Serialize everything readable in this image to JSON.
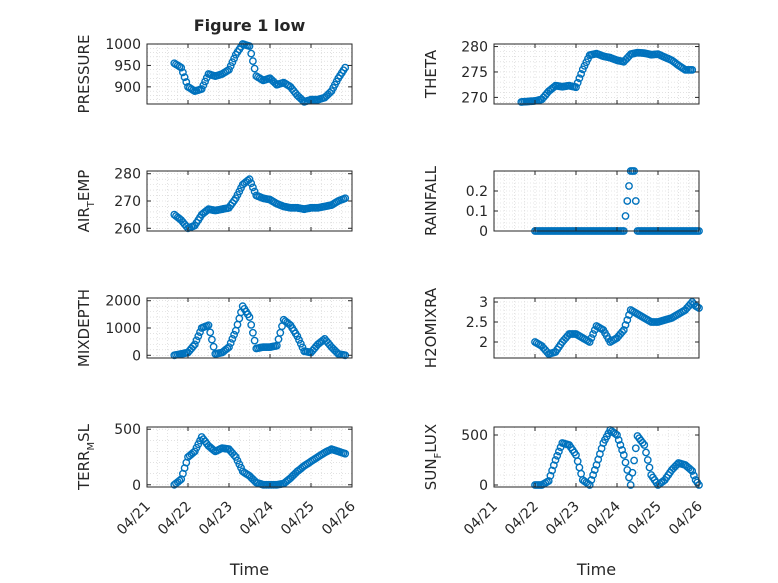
{
  "figure_title": "Figure 1 low",
  "colors": {
    "marker": "#0072BD",
    "axis": "#262626",
    "grid": "#d0d0d0"
  },
  "chart_data": [
    {
      "type": "scatter",
      "ylabel": "PRESSURE",
      "xlim": [
        "04/21",
        "04/26"
      ],
      "ylim": [
        860,
        1000
      ],
      "yticks": [
        900,
        950,
        1000
      ],
      "grid": true,
      "x": [
        "04/21 16:00",
        "04/21 20:00",
        "04/22 00:00",
        "04/22 04:00",
        "04/22 08:00",
        "04/22 12:00",
        "04/22 16:00",
        "04/22 20:00",
        "04/23 00:00",
        "04/23 04:00",
        "04/23 08:00",
        "04/23 12:00",
        "04/23 16:00",
        "04/23 20:00",
        "04/24 00:00",
        "04/24 04:00",
        "04/24 08:00",
        "04/24 12:00",
        "04/24 16:00",
        "04/24 20:00",
        "04/25 00:00",
        "04/25 04:00",
        "04/25 08:00",
        "04/25 12:00",
        "04/25 16:00",
        "04/25 20:00"
      ],
      "y": [
        955,
        945,
        900,
        890,
        895,
        930,
        925,
        930,
        940,
        975,
        1000,
        995,
        925,
        915,
        920,
        905,
        910,
        900,
        880,
        865,
        870,
        870,
        875,
        890,
        920,
        945
      ]
    },
    {
      "type": "scatter",
      "ylabel": "THETA",
      "xlim": [
        "04/21",
        "04/26"
      ],
      "ylim": [
        268.7,
        280.5
      ],
      "yticks": [
        270,
        275,
        280
      ],
      "grid": true,
      "x": [
        "04/21 16:00",
        "04/21 20:00",
        "04/22 00:00",
        "04/22 04:00",
        "04/22 08:00",
        "04/22 12:00",
        "04/22 16:00",
        "04/22 20:00",
        "04/23 00:00",
        "04/23 04:00",
        "04/23 08:00",
        "04/23 12:00",
        "04/23 16:00",
        "04/23 20:00",
        "04/24 00:00",
        "04/24 04:00",
        "04/24 08:00",
        "04/24 12:00",
        "04/24 16:00",
        "04/24 20:00",
        "04/25 00:00",
        "04/25 04:00",
        "04/25 08:00",
        "04/25 12:00",
        "04/25 16:00",
        "04/25 20:00"
      ],
      "y": [
        269.1,
        269.2,
        269.3,
        269.6,
        271.2,
        272.3,
        272.1,
        272.3,
        272.0,
        275.5,
        278.3,
        278.6,
        278.1,
        277.8,
        277.3,
        277.0,
        278.5,
        278.8,
        278.7,
        278.4,
        278.5,
        277.9,
        277.3,
        276.3,
        275.4,
        275.4
      ]
    },
    {
      "type": "scatter",
      "ylabel": "AIR_TEMP",
      "xlim": [
        "04/21",
        "04/26"
      ],
      "ylim": [
        259,
        281
      ],
      "yticks": [
        260,
        270,
        280
      ],
      "grid": true,
      "x": [
        "04/21 16:00",
        "04/21 20:00",
        "04/22 00:00",
        "04/22 04:00",
        "04/22 08:00",
        "04/22 12:00",
        "04/22 16:00",
        "04/22 20:00",
        "04/23 00:00",
        "04/23 04:00",
        "04/23 08:00",
        "04/23 12:00",
        "04/23 16:00",
        "04/23 20:00",
        "04/24 00:00",
        "04/24 04:00",
        "04/24 08:00",
        "04/24 12:00",
        "04/24 16:00",
        "04/24 20:00",
        "04/25 00:00",
        "04/25 04:00",
        "04/25 08:00",
        "04/25 12:00",
        "04/25 16:00",
        "04/25 20:00"
      ],
      "y": [
        265,
        263,
        260,
        261,
        265,
        267,
        266.5,
        267,
        267.5,
        271,
        276,
        278,
        272,
        271,
        270.5,
        269,
        268,
        267.5,
        267.5,
        267,
        267.5,
        267.5,
        268,
        268.5,
        270,
        271
      ]
    },
    {
      "type": "scatter",
      "ylabel": "RAINFALL",
      "xlim": [
        "04/21",
        "04/26"
      ],
      "ylim": [
        0,
        0.3
      ],
      "yticks": [
        0,
        0.1,
        0.2
      ],
      "grid": true,
      "x": [
        "04/22 00:00",
        "04/22 04:00",
        "04/22 08:00",
        "04/22 12:00",
        "04/22 16:00",
        "04/22 20:00",
        "04/23 00:00",
        "04/23 04:00",
        "04/23 08:00",
        "04/23 12:00",
        "04/23 16:00",
        "04/23 20:00",
        "04/24 00:00",
        "04/24 04:00",
        "04/24 08:00",
        "04/24 10:00",
        "04/24 12:00",
        "04/24 16:00",
        "04/24 20:00",
        "04/25 00:00",
        "04/25 04:00",
        "04/25 08:00",
        "04/25 12:00",
        "04/25 16:00",
        "04/25 20:00",
        "04/26 00:00"
      ],
      "y": [
        0,
        0,
        0,
        0,
        0,
        0,
        0,
        0,
        0,
        0,
        0,
        0,
        0,
        0,
        0.3,
        0.3,
        0,
        0,
        0,
        0,
        0,
        0,
        0,
        0,
        0,
        0
      ]
    },
    {
      "type": "scatter",
      "ylabel": "MIXDEPTH",
      "xlim": [
        "04/21",
        "04/26"
      ],
      "ylim": [
        -100,
        2100
      ],
      "yticks": [
        0,
        1000,
        2000
      ],
      "grid": true,
      "x": [
        "04/21 16:00",
        "04/21 20:00",
        "04/22 00:00",
        "04/22 04:00",
        "04/22 08:00",
        "04/22 12:00",
        "04/22 16:00",
        "04/22 20:00",
        "04/23 00:00",
        "04/23 04:00",
        "04/23 08:00",
        "04/23 12:00",
        "04/23 16:00",
        "04/23 20:00",
        "04/24 00:00",
        "04/24 04:00",
        "04/24 08:00",
        "04/24 12:00",
        "04/24 16:00",
        "04/24 20:00",
        "04/25 00:00",
        "04/25 04:00",
        "04/25 08:00",
        "04/25 12:00",
        "04/25 16:00",
        "04/25 20:00"
      ],
      "y": [
        0,
        50,
        100,
        400,
        1000,
        1100,
        50,
        100,
        300,
        900,
        1800,
        1400,
        250,
        300,
        300,
        350,
        1300,
        1100,
        700,
        150,
        100,
        400,
        600,
        300,
        50,
        0
      ]
    },
    {
      "type": "scatter",
      "ylabel": "H2OMIXRA",
      "xlim": [
        "04/21",
        "04/26"
      ],
      "ylim": [
        1.6,
        3.1
      ],
      "yticks": [
        2,
        2.5,
        3
      ],
      "grid": true,
      "x": [
        "04/22 00:00",
        "04/22 04:00",
        "04/22 08:00",
        "04/22 12:00",
        "04/22 16:00",
        "04/22 20:00",
        "04/23 00:00",
        "04/23 04:00",
        "04/23 08:00",
        "04/23 12:00",
        "04/23 16:00",
        "04/23 20:00",
        "04/24 00:00",
        "04/24 04:00",
        "04/24 08:00",
        "04/24 12:00",
        "04/24 16:00",
        "04/24 20:00",
        "04/25 00:00",
        "04/25 04:00",
        "04/25 08:00",
        "04/25 12:00",
        "04/25 16:00",
        "04/25 20:00",
        "04/25 22:00",
        "04/26 00:00"
      ],
      "y": [
        2.0,
        1.9,
        1.7,
        1.75,
        2.0,
        2.2,
        2.2,
        2.1,
        2.0,
        2.4,
        2.3,
        2.0,
        2.1,
        2.3,
        2.8,
        2.7,
        2.6,
        2.5,
        2.5,
        2.55,
        2.6,
        2.7,
        2.8,
        3.0,
        2.9,
        2.85
      ]
    },
    {
      "type": "scatter",
      "ylabel": "TERR_MSL",
      "xlim": [
        "04/21",
        "04/26"
      ],
      "ylim": [
        -20,
        520
      ],
      "yticks": [
        0,
        500
      ],
      "grid": true,
      "x": [
        "04/21 16:00",
        "04/21 20:00",
        "04/22 00:00",
        "04/22 04:00",
        "04/22 08:00",
        "04/22 12:00",
        "04/22 16:00",
        "04/22 20:00",
        "04/23 00:00",
        "04/23 04:00",
        "04/23 08:00",
        "04/23 12:00",
        "04/23 16:00",
        "04/23 20:00",
        "04/24 00:00",
        "04/24 04:00",
        "04/24 08:00",
        "04/24 12:00",
        "04/24 16:00",
        "04/24 20:00",
        "04/25 00:00",
        "04/25 04:00",
        "04/25 08:00",
        "04/25 12:00",
        "04/25 16:00",
        "04/25 20:00"
      ],
      "y": [
        0,
        50,
        250,
        300,
        430,
        350,
        300,
        330,
        320,
        250,
        120,
        80,
        20,
        0,
        0,
        0,
        10,
        60,
        120,
        170,
        210,
        250,
        290,
        320,
        300,
        280
      ]
    },
    {
      "type": "scatter",
      "ylabel": "SUN_FLUX",
      "xlim": [
        "04/21",
        "04/26"
      ],
      "ylim": [
        -20,
        580
      ],
      "yticks": [
        0,
        500
      ],
      "grid": true,
      "x": [
        "04/22 00:00",
        "04/22 04:00",
        "04/22 08:00",
        "04/22 12:00",
        "04/22 16:00",
        "04/22 20:00",
        "04/23 00:00",
        "04/23 04:00",
        "04/23 08:00",
        "04/23 12:00",
        "04/23 16:00",
        "04/23 20:00",
        "04/24 00:00",
        "04/24 04:00",
        "04/24 08:00",
        "04/24 12:00",
        "04/24 16:00",
        "04/24 20:00",
        "04/25 00:00",
        "04/25 04:00",
        "04/25 08:00",
        "04/25 12:00",
        "04/25 16:00",
        "04/25 20:00",
        "04/25 22:00",
        "04/26 00:00"
      ],
      "y": [
        0,
        0,
        40,
        250,
        420,
        400,
        300,
        50,
        0,
        200,
        420,
        550,
        500,
        300,
        0,
        490,
        400,
        100,
        0,
        50,
        150,
        220,
        200,
        140,
        50,
        0
      ]
    }
  ],
  "xticklabels": [
    "04/21",
    "04/22",
    "04/23",
    "04/24",
    "04/25",
    "04/26"
  ],
  "xlabel": "Time"
}
